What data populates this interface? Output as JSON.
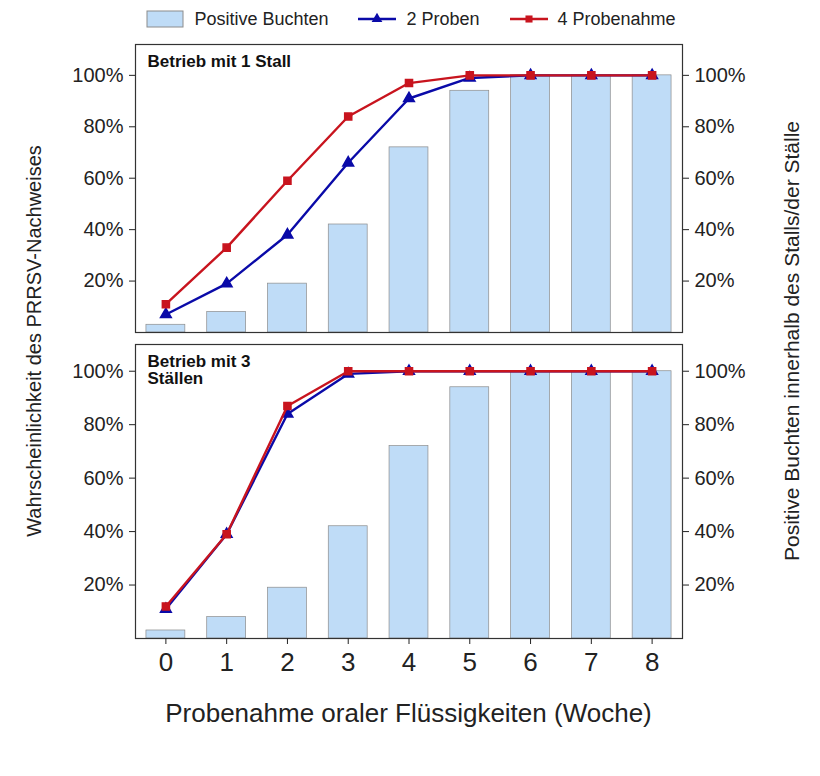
{
  "chart_data": [
    {
      "type": "bar_line",
      "title": "Betrieb mit 1 Stall",
      "y_label": "Wahrscheinlichkeit des PRRSV-Nachweises",
      "y2_label": "Positive Buchten innerhalb des Stalls/der Ställe",
      "x": [
        0,
        1,
        2,
        3,
        4,
        5,
        6,
        7,
        8
      ],
      "xlim": [
        -0.5,
        8.5
      ],
      "xticks": [
        0,
        1,
        2,
        3,
        4,
        5,
        6,
        7,
        8
      ],
      "ylim": [
        0,
        112
      ],
      "yticks": [
        {
          "value": 20,
          "label": "20%"
        },
        {
          "value": 40,
          "label": "40%"
        },
        {
          "value": 60,
          "label": "60%"
        },
        {
          "value": 80,
          "label": "80%"
        },
        {
          "value": 100,
          "label": "100%"
        }
      ],
      "y2lim": [
        0,
        112
      ],
      "y2ticks": [
        {
          "value": 20,
          "label": "20%"
        },
        {
          "value": 40,
          "label": "40%"
        },
        {
          "value": 60,
          "label": "60%"
        },
        {
          "value": 80,
          "label": "80%"
        },
        {
          "value": 100,
          "label": "100%"
        }
      ],
      "tick_labels": "y",
      "grid": false,
      "legend": "top",
      "series": [
        {
          "name": "Positive Buchten",
          "type": "bar",
          "axis": "y2",
          "color": "#bfdcf7",
          "values": [
            3,
            8,
            19,
            42,
            72,
            94,
            100,
            100,
            100
          ]
        },
        {
          "name": "2 Proben",
          "type": "line",
          "color": "#0a0aa8",
          "marker": "triangle",
          "values": [
            7,
            19,
            38,
            66,
            91,
            99,
            100,
            100,
            100
          ]
        },
        {
          "name": "4 Probenahme",
          "type": "line",
          "color": "#c8141e",
          "marker": "square",
          "values": [
            11,
            33,
            59,
            84,
            97,
            100,
            100,
            100,
            100
          ]
        }
      ]
    },
    {
      "type": "bar_line",
      "title": "Betrieb mit 3\nStällen",
      "x_label": "Probenahme oraler Flüssigkeiten (Woche)",
      "x": [
        0,
        1,
        2,
        3,
        4,
        5,
        6,
        7,
        8
      ],
      "xlim": [
        -0.5,
        8.5
      ],
      "xticks": [
        0,
        1,
        2,
        3,
        4,
        5,
        6,
        7,
        8
      ],
      "ylim": [
        0,
        110
      ],
      "yticks": [
        {
          "value": 20,
          "label": "20%"
        },
        {
          "value": 40,
          "label": "40%"
        },
        {
          "value": 60,
          "label": "60%"
        },
        {
          "value": 80,
          "label": "80%"
        },
        {
          "value": 100,
          "label": "100%"
        }
      ],
      "y2lim": [
        0,
        110
      ],
      "y2ticks": [
        {
          "value": 20,
          "label": "20%"
        },
        {
          "value": 40,
          "label": "40%"
        },
        {
          "value": 60,
          "label": "60%"
        },
        {
          "value": 80,
          "label": "80%"
        },
        {
          "value": 100,
          "label": "100%"
        }
      ],
      "grid": false,
      "series": [
        {
          "name": "Positive Buchten",
          "type": "bar",
          "axis": "y2",
          "color": "#bfdcf7",
          "values": [
            3,
            8,
            19,
            42,
            72,
            94,
            100,
            100,
            100
          ]
        },
        {
          "name": "2 Proben",
          "type": "line",
          "color": "#0a0aa8",
          "marker": "triangle",
          "values": [
            11,
            39,
            84,
            99,
            100,
            100,
            100,
            100,
            100
          ]
        },
        {
          "name": "4 Probenahme",
          "type": "line",
          "color": "#c8141e",
          "marker": "square",
          "values": [
            12,
            39,
            87,
            100,
            100,
            100,
            100,
            100,
            100
          ]
        }
      ]
    }
  ]
}
